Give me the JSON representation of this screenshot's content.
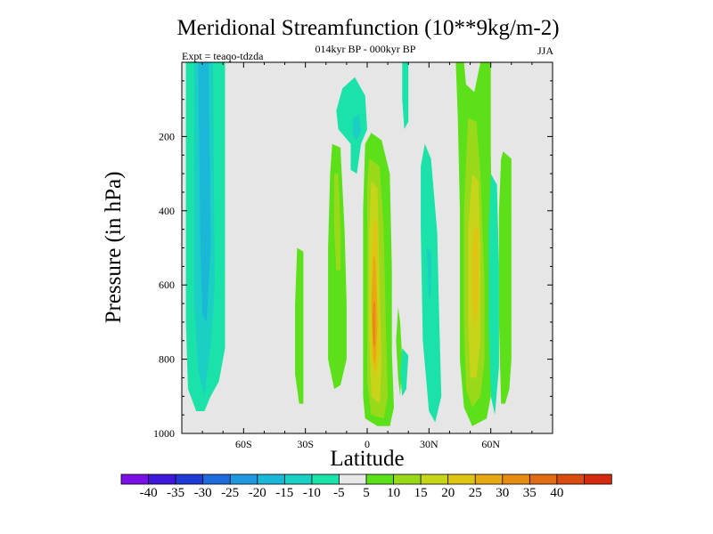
{
  "chart_data": {
    "type": "heatmap",
    "title": "Meridional Streamfunction (10**9kg/m-2)",
    "subtitle": "014kyr BP - 000kyr BP",
    "experiment": "Expt = teaqo-tdzda",
    "season": "JJA",
    "xlabel": "Latitude",
    "ylabel": "Pressure (in hPa)",
    "xlim": [
      -90,
      90
    ],
    "ylim": [
      1000,
      0
    ],
    "y_reversed": true,
    "x_ticks": [
      {
        "value": -60,
        "label": "60S"
      },
      {
        "value": -30,
        "label": "30S"
      },
      {
        "value": 0,
        "label": "0"
      },
      {
        "value": 30,
        "label": "30N"
      },
      {
        "value": 60,
        "label": "60N"
      }
    ],
    "y_ticks": [
      {
        "value": 200,
        "label": "200"
      },
      {
        "value": 400,
        "label": "400"
      },
      {
        "value": 600,
        "label": "600"
      },
      {
        "value": 800,
        "label": "800"
      },
      {
        "value": 1000,
        "label": "1000"
      }
    ],
    "background_color": "#e6e6e6",
    "colorbar": {
      "colors": [
        "#7b10e6",
        "#3d18d8",
        "#1f3ad6",
        "#1e6bde",
        "#1e99e0",
        "#1ab8d6",
        "#1acfc4",
        "#1ae2a8",
        "#e8e8e8",
        "#5ce01a",
        "#9ad81a",
        "#c6d41a",
        "#e0c414",
        "#e8a814",
        "#e68c14",
        "#e06c14",
        "#d84c10",
        "#d42a10"
      ],
      "labels": [
        "-40",
        "-35",
        "-30",
        "-25",
        "-20",
        "-15",
        "-10",
        "-5",
        "5",
        "10",
        "15",
        "20",
        "25",
        "30",
        "35",
        "40"
      ]
    },
    "regions": [
      {
        "name": "sh-polar-cell-outer",
        "value": -7,
        "points": [
          [
            -88,
            0
          ],
          [
            -69,
            0
          ],
          [
            -69,
            770
          ],
          [
            -72,
            860
          ],
          [
            -76,
            900
          ],
          [
            -79,
            940
          ],
          [
            -83,
            940
          ],
          [
            -87,
            880
          ],
          [
            -88,
            700
          ]
        ]
      },
      {
        "name": "sh-polar-cell-mid",
        "value": -12,
        "points": [
          [
            -84,
            0
          ],
          [
            -75,
            0
          ],
          [
            -74,
            600
          ],
          [
            -76,
            760
          ],
          [
            -79,
            900
          ],
          [
            -82,
            830
          ],
          [
            -84,
            650
          ]
        ]
      },
      {
        "name": "sh-polar-cell-core",
        "value": -17,
        "points": [
          [
            -82,
            0
          ],
          [
            -77,
            0
          ],
          [
            -76,
            500
          ],
          [
            -78,
            700
          ],
          [
            -80,
            680
          ],
          [
            -81,
            500
          ]
        ]
      },
      {
        "name": "sh-mid-lat-band",
        "value": 7,
        "points": [
          [
            -34,
            500
          ],
          [
            -31,
            510
          ],
          [
            -31,
            700
          ],
          [
            -31,
            920
          ],
          [
            -33,
            920
          ],
          [
            -35,
            840
          ],
          [
            -35,
            650
          ]
        ]
      },
      {
        "name": "sh-subtropical-band-outer",
        "value": 7,
        "points": [
          [
            -17,
            220
          ],
          [
            -13,
            230
          ],
          [
            -11,
            450
          ],
          [
            -10,
            650
          ],
          [
            -10,
            800
          ],
          [
            -13,
            870
          ],
          [
            -16,
            880
          ],
          [
            -19,
            800
          ],
          [
            -19,
            500
          ],
          [
            -18,
            300
          ]
        ]
      },
      {
        "name": "sh-subtropical-band-inner",
        "value": 12,
        "points": [
          [
            -16,
            300
          ],
          [
            -14,
            300
          ],
          [
            -13,
            450
          ],
          [
            -13,
            560
          ],
          [
            -15,
            560
          ],
          [
            -16,
            450
          ]
        ]
      },
      {
        "name": "upper-cell",
        "value": -7,
        "points": [
          [
            -12,
            70
          ],
          [
            -6,
            40
          ],
          [
            -1,
            90
          ],
          [
            0,
            180
          ],
          [
            -3,
            220
          ],
          [
            -5,
            300
          ],
          [
            -8,
            290
          ],
          [
            -8,
            220
          ],
          [
            -14,
            180
          ],
          [
            -15,
            130
          ]
        ]
      },
      {
        "name": "upper-cell-core",
        "value": -13,
        "points": [
          [
            -7,
            150
          ],
          [
            -4,
            140
          ],
          [
            -3,
            185
          ],
          [
            -5,
            210
          ],
          [
            -7,
            195
          ]
        ]
      },
      {
        "name": "hadley-cell-outer",
        "value": 7,
        "points": [
          [
            2,
            190
          ],
          [
            7,
            210
          ],
          [
            11,
            300
          ],
          [
            12,
            560
          ],
          [
            12,
            780
          ],
          [
            13,
            930
          ],
          [
            11,
            980
          ],
          [
            5,
            980
          ],
          [
            -1,
            960
          ],
          [
            -2,
            900
          ],
          [
            -2,
            700
          ],
          [
            -2,
            400
          ],
          [
            -1,
            220
          ]
        ]
      },
      {
        "name": "hadley-cell-mid",
        "value": 12,
        "points": [
          [
            1,
            260
          ],
          [
            6,
            280
          ],
          [
            8,
            450
          ],
          [
            9,
            700
          ],
          [
            10,
            900
          ],
          [
            8,
            960
          ],
          [
            2,
            950
          ],
          [
            0,
            860
          ],
          [
            0,
            550
          ],
          [
            0,
            330
          ]
        ]
      },
      {
        "name": "hadley-cell-inner",
        "value": 17,
        "points": [
          [
            2,
            320
          ],
          [
            5,
            340
          ],
          [
            6,
            600
          ],
          [
            7,
            820
          ],
          [
            6,
            920
          ],
          [
            2,
            900
          ],
          [
            1,
            750
          ],
          [
            1,
            450
          ]
        ]
      },
      {
        "name": "hadley-cell-core-25",
        "value": 22,
        "points": [
          [
            3,
            420
          ],
          [
            5,
            440
          ],
          [
            5,
            600
          ],
          [
            6,
            780
          ],
          [
            4,
            850
          ],
          [
            2,
            800
          ],
          [
            2,
            550
          ]
        ]
      },
      {
        "name": "hadley-cell-core-30",
        "value": 27,
        "points": [
          [
            3,
            520
          ],
          [
            4,
            530
          ],
          [
            5,
            700
          ],
          [
            4,
            820
          ],
          [
            3,
            800
          ],
          [
            2,
            650
          ]
        ]
      },
      {
        "name": "hadley-cell-core-35",
        "value": 32,
        "points": [
          [
            3,
            640
          ],
          [
            4,
            650
          ],
          [
            4,
            760
          ],
          [
            3,
            770
          ],
          [
            2.5,
            700
          ]
        ]
      },
      {
        "name": "nh-subtropical-sliver",
        "value": 7,
        "points": [
          [
            15,
            660
          ],
          [
            16,
            700
          ],
          [
            17,
            800
          ],
          [
            16,
            900
          ],
          [
            15,
            850
          ],
          [
            14,
            750
          ]
        ]
      },
      {
        "name": "nh-teal-streak",
        "value": -7,
        "points": [
          [
            17,
            770
          ],
          [
            20,
            790
          ],
          [
            19,
            880
          ],
          [
            17,
            900
          ],
          [
            16,
            840
          ]
        ]
      },
      {
        "name": "nh-topsliver",
        "value": -7,
        "points": [
          [
            17,
            0
          ],
          [
            20,
            0
          ],
          [
            20,
            160
          ],
          [
            18,
            180
          ],
          [
            17,
            100
          ]
        ]
      },
      {
        "name": "nh-ferrel-cell",
        "value": -7,
        "points": [
          [
            28,
            220
          ],
          [
            31,
            260
          ],
          [
            34,
            460
          ],
          [
            35,
            700
          ],
          [
            36,
            900
          ],
          [
            33,
            970
          ],
          [
            30,
            940
          ],
          [
            27,
            750
          ],
          [
            26,
            450
          ],
          [
            26,
            280
          ]
        ]
      },
      {
        "name": "nh-ferrel-cell-core",
        "value": -12,
        "points": [
          [
            29,
            500
          ],
          [
            31,
            510
          ],
          [
            31,
            620
          ],
          [
            30,
            640
          ]
        ]
      },
      {
        "name": "nh-jet-band-outer",
        "value": 7,
        "points": [
          [
            43,
            0
          ],
          [
            47,
            0
          ],
          [
            48,
            60
          ],
          [
            52,
            80
          ],
          [
            55,
            0
          ],
          [
            60,
            0
          ],
          [
            60,
            250
          ],
          [
            61,
            600
          ],
          [
            60,
            900
          ],
          [
            58,
            960
          ],
          [
            51,
            980
          ],
          [
            47,
            930
          ],
          [
            45,
            800
          ],
          [
            45,
            400
          ],
          [
            44,
            150
          ]
        ]
      },
      {
        "name": "nh-jet-band-mid",
        "value": 12,
        "points": [
          [
            49,
            150
          ],
          [
            53,
            160
          ],
          [
            55,
            300
          ],
          [
            57,
            600
          ],
          [
            57,
            800
          ],
          [
            55,
            900
          ],
          [
            51,
            930
          ],
          [
            48,
            880
          ],
          [
            47,
            700
          ],
          [
            47,
            400
          ]
        ]
      },
      {
        "name": "nh-jet-band-inner",
        "value": 17,
        "points": [
          [
            51,
            300
          ],
          [
            54,
            320
          ],
          [
            55,
            500
          ],
          [
            55,
            750
          ],
          [
            53,
            850
          ],
          [
            50,
            850
          ],
          [
            49,
            700
          ],
          [
            49,
            450
          ]
        ]
      },
      {
        "name": "nh-jet-band-core",
        "value": 22,
        "points": [
          [
            52,
            440
          ],
          [
            54,
            450
          ],
          [
            54,
            650
          ],
          [
            52,
            720
          ],
          [
            51,
            650
          ],
          [
            51,
            500
          ]
        ]
      },
      {
        "name": "nh-high-lat-band",
        "value": 7,
        "points": [
          [
            66,
            240
          ],
          [
            70,
            260
          ],
          [
            70,
            550
          ],
          [
            70,
            800
          ],
          [
            69,
            880
          ],
          [
            67,
            920
          ],
          [
            65,
            920
          ],
          [
            64,
            700
          ],
          [
            64,
            400
          ],
          [
            65,
            260
          ]
        ]
      },
      {
        "name": "nh-high-lat-teal",
        "value": -7,
        "points": [
          [
            60,
            300
          ],
          [
            63,
            330
          ],
          [
            64,
            550
          ],
          [
            64,
            820
          ],
          [
            62,
            950
          ],
          [
            60,
            900
          ],
          [
            59,
            700
          ],
          [
            59,
            450
          ]
        ]
      }
    ]
  }
}
